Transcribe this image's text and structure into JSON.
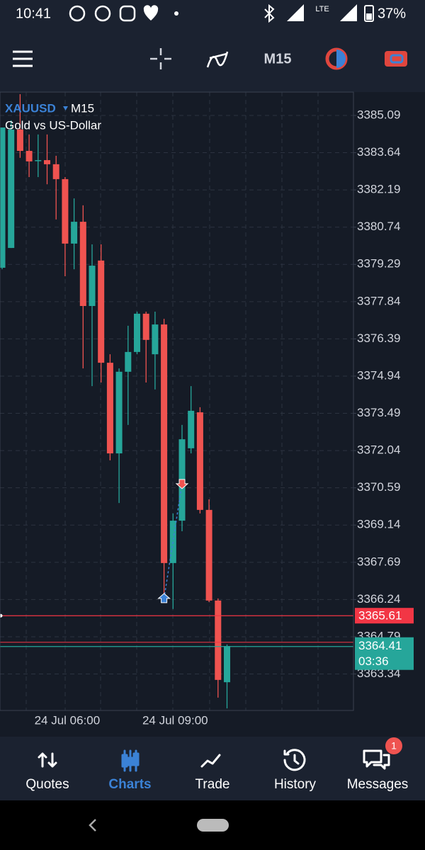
{
  "status_bar": {
    "time": "10:41",
    "network": "LTE",
    "battery": "37%"
  },
  "toolbar": {
    "timeframe": "M15"
  },
  "chart_data": {
    "type": "candlestick",
    "symbol": "XAUUSD",
    "timeframe": "M15",
    "subtitle": "Gold vs US-Dollar",
    "categories": [
      null,
      null,
      null,
      null,
      null,
      null,
      null,
      "24 Jul 06:00",
      null,
      null,
      null,
      null,
      null,
      null,
      null,
      null,
      null,
      null,
      null,
      "24 Jul 09:00",
      null,
      null,
      null,
      null,
      null,
      null
    ],
    "open": [
      3379.16,
      3379.93,
      3384.54,
      3383.71,
      3383.35,
      3383.35,
      3383.19,
      3382.61,
      3380.1,
      3380.95,
      3377.67,
      3379.44,
      3375.46,
      3371.93,
      3375.11,
      3375.88,
      3377.37,
      3375.79,
      3376.95,
      3367.66,
      3369.31,
      3372.13,
      3373.53,
      3369.73,
      3366.2,
      3363.02
    ],
    "high": [
      3384.62,
      3384.9,
      3385.92,
      3384.35,
      3384.35,
      3384.35,
      3383.52,
      3382.69,
      3381.86,
      3381.59,
      3380.07,
      3380.07,
      3375.79,
      3375.24,
      3376.9,
      3377.45,
      3377.45,
      3377.45,
      3377.17,
      3369.59,
      3373.04,
      3374.55,
      3373.73,
      3370.14,
      3366.28,
      3364.49
    ],
    "low": [
      3379.1,
      3379.93,
      3383.44,
      3382.69,
      3382.69,
      3382.41,
      3381.04,
      3378.83,
      3379.1,
      3375.24,
      3374.55,
      3374.69,
      3371.66,
      3370.0,
      3373.04,
      3375.79,
      3374.69,
      3374.42,
      3366.42,
      3365.87,
      3368.9,
      3371.93,
      3369.59,
      3366.14,
      3362.42,
      3362.0
    ],
    "close": [
      3384.62,
      3384.54,
      3383.71,
      3383.3,
      3383.35,
      3383.19,
      3382.61,
      3380.1,
      3380.95,
      3377.67,
      3379.24,
      3375.46,
      3371.93,
      3375.11,
      3375.88,
      3377.37,
      3376.35,
      3376.95,
      3367.66,
      3369.31,
      3372.48,
      3373.59,
      3369.73,
      3366.2,
      3363.11,
      3364.43
    ],
    "up_color": "#26a69a",
    "down_color": "#ef5350",
    "ylim": [
      3361.92,
      3386.0
    ],
    "yticks": [
      3385.09,
      3383.64,
      3382.19,
      3380.74,
      3379.29,
      3377.84,
      3376.39,
      3374.94,
      3373.49,
      3372.04,
      3370.59,
      3369.14,
      3367.69,
      3366.24,
      3364.79,
      3363.34
    ],
    "grid": true,
    "ask": {
      "value": 3365.61,
      "color": "#f23645"
    },
    "bid": {
      "value": 3364.41,
      "color": "#26a69a",
      "countdown": "03:36"
    },
    "trade": {
      "open": 3366.28,
      "close": 3370.75
    }
  },
  "nav": {
    "tabs": [
      "Quotes",
      "Charts",
      "Trade",
      "History",
      "Messages"
    ],
    "active": 1,
    "badge": "1"
  }
}
